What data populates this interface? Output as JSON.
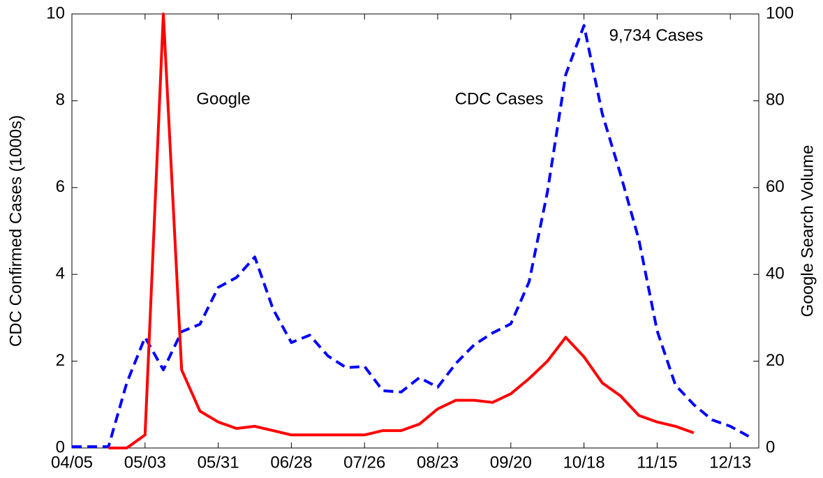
{
  "chart_data": {
    "type": "line",
    "categories": [
      "04/05",
      null,
      null,
      null,
      "05/03",
      null,
      null,
      null,
      "05/31",
      null,
      null,
      null,
      "06/28",
      null,
      null,
      null,
      "07/26",
      null,
      null,
      null,
      "08/23",
      null,
      null,
      null,
      "09/20",
      null,
      null,
      null,
      "10/18",
      null,
      null,
      null,
      "11/15",
      null,
      null,
      null,
      "12/13",
      null
    ],
    "series": [
      {
        "name": "CDC Cases",
        "color": "#0000ff",
        "dashed": true,
        "axis": "y",
        "values": [
          0.03,
          0.03,
          0.03,
          1.5,
          2.55,
          1.8,
          2.68,
          2.85,
          3.7,
          3.93,
          4.4,
          3.2,
          2.43,
          2.6,
          2.12,
          1.85,
          1.88,
          1.32,
          1.29,
          1.62,
          1.4,
          1.95,
          2.38,
          2.65,
          2.86,
          3.83,
          5.9,
          8.6,
          9.734,
          7.7,
          6.3,
          4.8,
          2.7,
          1.45,
          1.0,
          0.65,
          0.5,
          0.27
        ]
      },
      {
        "name": "Google",
        "color": "#ff0000",
        "dashed": false,
        "axis": "y2",
        "values": [
          null,
          null,
          0,
          0,
          3,
          100,
          18,
          8.5,
          6,
          4.5,
          5,
          4,
          3,
          3,
          3,
          3,
          3,
          4,
          4,
          5.5,
          9,
          11,
          11,
          10.5,
          12.5,
          16,
          20,
          25.5,
          21,
          15,
          12,
          7.5,
          6,
          5,
          3.5,
          null,
          null,
          null
        ]
      }
    ],
    "ylabel": "CDC Confirmed Cases (1000s)",
    "y2label": "Google Search Volume",
    "ylim": [
      0,
      10
    ],
    "yticks": [
      0,
      2,
      4,
      6,
      8,
      10
    ],
    "y2lim": [
      0,
      100
    ],
    "y2ticks": [
      0,
      20,
      40,
      60,
      80,
      100
    ],
    "annotations": [
      {
        "text": "Google",
        "series": 1
      },
      {
        "text": "CDC Cases",
        "series": 0
      },
      {
        "text": "9,734 Cases",
        "series": 0,
        "index": 28
      }
    ]
  }
}
